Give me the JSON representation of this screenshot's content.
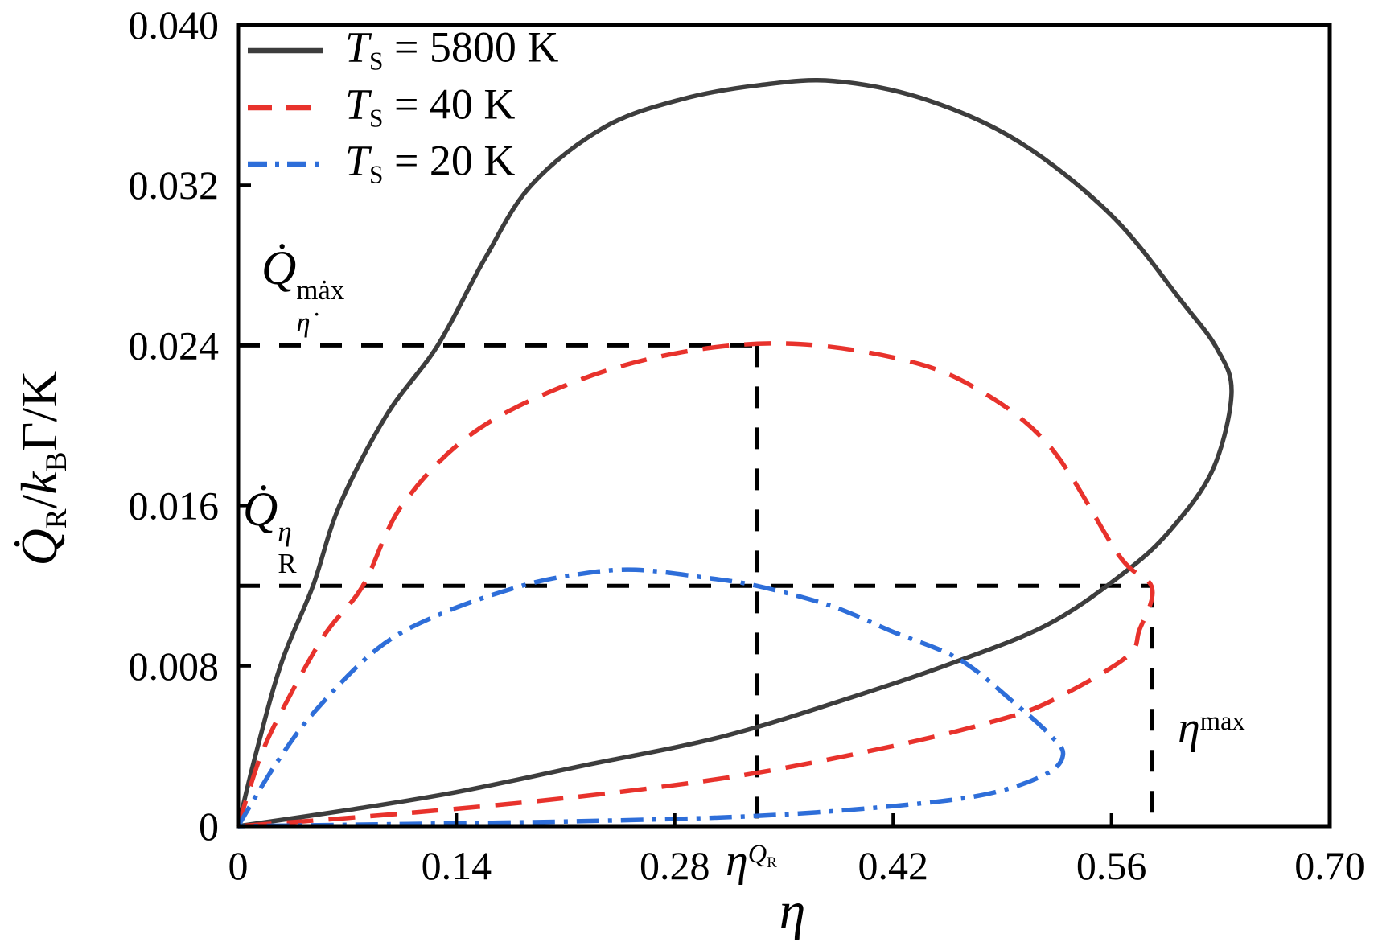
{
  "figure_title": "",
  "chart_data": {
    "type": "line",
    "title": "",
    "xlabel": "η",
    "ylabel": "Q̇_R / k_B Γ / K",
    "x_range": [
      0,
      0.7
    ],
    "y_range": [
      0,
      0.04
    ],
    "x_ticks": [
      0,
      0.14,
      0.28,
      0.42,
      0.56,
      0.7
    ],
    "x_tick_labels": [
      "0",
      "0.14",
      "0.28",
      "0.42",
      "0.56",
      "0.70"
    ],
    "y_ticks": [
      0,
      0.008,
      0.016,
      0.024,
      0.032,
      0.04
    ],
    "y_tick_labels": [
      "0",
      "0.008",
      "0.016",
      "0.024",
      "0.032",
      "0.040"
    ],
    "grid": false,
    "legend_position": "upper left",
    "series": [
      {
        "name": "T_S = 5800 K",
        "color": "#3d3d3d",
        "line_style": "solid",
        "dash": "",
        "legend_dash": "",
        "points": [
          [
            0,
            0
          ],
          [
            0.012,
            0.0038
          ],
          [
            0.028,
            0.0082
          ],
          [
            0.048,
            0.012
          ],
          [
            0.065,
            0.016
          ],
          [
            0.095,
            0.0205
          ],
          [
            0.128,
            0.024
          ],
          [
            0.158,
            0.0283
          ],
          [
            0.188,
            0.032
          ],
          [
            0.235,
            0.0349
          ],
          [
            0.285,
            0.0363
          ],
          [
            0.335,
            0.037
          ],
          [
            0.382,
            0.0372
          ],
          [
            0.44,
            0.0363
          ],
          [
            0.5,
            0.0342
          ],
          [
            0.56,
            0.0305
          ],
          [
            0.605,
            0.0262
          ],
          [
            0.628,
            0.0238
          ],
          [
            0.637,
            0.0216
          ],
          [
            0.625,
            0.0178
          ],
          [
            0.598,
            0.0148
          ],
          [
            0.569,
            0.0127
          ],
          [
            0.52,
            0.0101
          ],
          [
            0.46,
            0.0082
          ],
          [
            0.4,
            0.0066
          ],
          [
            0.312,
            0.0045
          ],
          [
            0.22,
            0.003
          ],
          [
            0.14,
            0.0017
          ],
          [
            0.07,
            0.0008
          ],
          [
            0,
            0
          ]
        ]
      },
      {
        "name": "T_S = 40 K",
        "color": "#e8322c",
        "line_style": "dashed",
        "dash": "33 19",
        "legend_dash": "30 18",
        "points": [
          [
            0,
            0
          ],
          [
            0.014,
            0.0034
          ],
          [
            0.029,
            0.0059
          ],
          [
            0.055,
            0.0095
          ],
          [
            0.08,
            0.012
          ],
          [
            0.105,
            0.016
          ],
          [
            0.15,
            0.0196
          ],
          [
            0.213,
            0.0221
          ],
          [
            0.28,
            0.0236
          ],
          [
            0.35,
            0.0241
          ],
          [
            0.42,
            0.0234
          ],
          [
            0.47,
            0.022
          ],
          [
            0.52,
            0.019
          ],
          [
            0.565,
            0.0135
          ],
          [
            0.586,
            0.0119
          ],
          [
            0.578,
            0.0098
          ],
          [
            0.569,
            0.0084
          ],
          [
            0.52,
            0.0062
          ],
          [
            0.483,
            0.0052
          ],
          [
            0.42,
            0.004
          ],
          [
            0.32,
            0.0025
          ],
          [
            0.21,
            0.0014
          ],
          [
            0.1,
            0.0006
          ],
          [
            0,
            0
          ]
        ]
      },
      {
        "name": "T_S = 20 K",
        "color": "#2e6ed9",
        "line_style": "dashdot",
        "dash": "28 11 5 11",
        "legend_dash": "24 10 5 10",
        "points": [
          [
            0,
            0
          ],
          [
            0.025,
            0.0032
          ],
          [
            0.05,
            0.0058
          ],
          [
            0.09,
            0.0089
          ],
          [
            0.13,
            0.0106
          ],
          [
            0.182,
            0.012
          ],
          [
            0.22,
            0.0126
          ],
          [
            0.255,
            0.0128
          ],
          [
            0.3,
            0.0124
          ],
          [
            0.3325,
            0.012
          ],
          [
            0.38,
            0.011
          ],
          [
            0.42,
            0.0097
          ],
          [
            0.463,
            0.0083
          ],
          [
            0.5,
            0.006
          ],
          [
            0.52,
            0.0046
          ],
          [
            0.529,
            0.0036
          ],
          [
            0.518,
            0.0026
          ],
          [
            0.48,
            0.0016
          ],
          [
            0.42,
            0.001
          ],
          [
            0.33,
            0.0005
          ],
          [
            0.22,
            0.00025
          ],
          [
            0.1,
            0.0001
          ],
          [
            0,
            0
          ]
        ]
      }
    ],
    "annotations": {
      "q_max": {
        "value": 0.024,
        "label": "Q̇^mȧx_η̇"
      },
      "q_eta": {
        "value": 0.012,
        "label": "Q̇^η_R"
      },
      "eta_qr": {
        "value": 0.3325,
        "label": "η^Q_R"
      },
      "eta_max": {
        "value": 0.586,
        "label": "η^max"
      }
    },
    "guide_color": "#000000",
    "frame_color": "#000000"
  },
  "legend": {
    "entries": [
      {
        "parts": [
          {
            "t": "T",
            "i": true
          },
          {
            "sub": [
              {
                "t": "S"
              }
            ]
          },
          {
            "t": " = 5800 K"
          }
        ]
      },
      {
        "parts": [
          {
            "t": "T",
            "i": true
          },
          {
            "sub": [
              {
                "t": "S"
              }
            ]
          },
          {
            "t": " = 40 K"
          }
        ]
      },
      {
        "parts": [
          {
            "t": "T",
            "i": true
          },
          {
            "sub": [
              {
                "t": "S"
              }
            ]
          },
          {
            "t": " = 20 K"
          }
        ]
      }
    ]
  },
  "math_labels": {
    "ylabel_parts": [
      {
        "t": "Q̇",
        "i": true
      },
      {
        "sub": [
          {
            "t": "R"
          }
        ]
      },
      {
        "t": "/"
      },
      {
        "t": "k",
        "i": true
      },
      {
        "sub": [
          {
            "t": "B"
          }
        ]
      },
      {
        "t": "Γ"
      },
      {
        "t": "/K"
      }
    ],
    "xlabel_parts": [
      {
        "t": "η",
        "i": true
      }
    ],
    "q_max_parts": [
      {
        "t": "Q̇",
        "i": true
      },
      {
        "sup": [
          {
            "t": "mȧx"
          }
        ],
        "sub": [
          {
            "t": "η̇",
            "i": true
          }
        ]
      }
    ],
    "q_eta_parts": [
      {
        "t": "Q̇",
        "i": true
      },
      {
        "sup": [
          {
            "t": "η",
            "i": true
          }
        ],
        "sub": [
          {
            "t": "R"
          }
        ]
      }
    ],
    "eta_qr_parts": [
      {
        "t": "η",
        "i": true
      },
      {
        "sup": [
          {
            "t": "Q",
            "i": true
          },
          {
            "sub": [
              {
                "t": "R"
              }
            ]
          }
        ]
      }
    ],
    "eta_max_parts": [
      {
        "t": "η",
        "i": true
      },
      {
        "sup": [
          {
            "t": "max"
          }
        ]
      }
    ]
  }
}
